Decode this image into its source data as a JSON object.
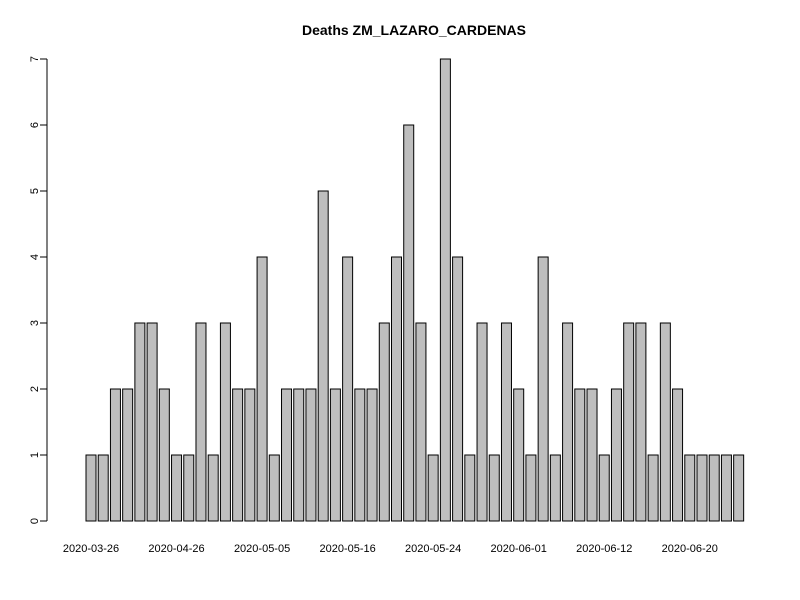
{
  "chart_data": {
    "type": "bar",
    "title": "Deaths ZM_LAZARO_CARDENAS",
    "xlabel": "",
    "ylabel": "",
    "ylim": [
      0,
      7
    ],
    "yticks": [
      0,
      1,
      2,
      3,
      4,
      5,
      6,
      7
    ],
    "grid": false,
    "bar_color": "#bebebe",
    "border_color": "#000000",
    "values": [
      1,
      1,
      2,
      2,
      3,
      3,
      2,
      1,
      1,
      3,
      1,
      3,
      2,
      2,
      4,
      1,
      2,
      2,
      2,
      5,
      2,
      4,
      2,
      2,
      3,
      4,
      6,
      3,
      1,
      7,
      4,
      1,
      3,
      1,
      3,
      2,
      1,
      4,
      1,
      3,
      2,
      2,
      1,
      2,
      3,
      3,
      1,
      3,
      2,
      1,
      1,
      1,
      1,
      1
    ],
    "x_tick_labels": [
      {
        "index": 0,
        "label": "2020-03-26"
      },
      {
        "index": 7,
        "label": "2020-04-26"
      },
      {
        "index": 14,
        "label": "2020-05-05"
      },
      {
        "index": 21,
        "label": "2020-05-16"
      },
      {
        "index": 28,
        "label": "2020-05-24"
      },
      {
        "index": 35,
        "label": "2020-06-01"
      },
      {
        "index": 42,
        "label": "2020-06-12"
      },
      {
        "index": 49,
        "label": "2020-06-20"
      }
    ]
  }
}
